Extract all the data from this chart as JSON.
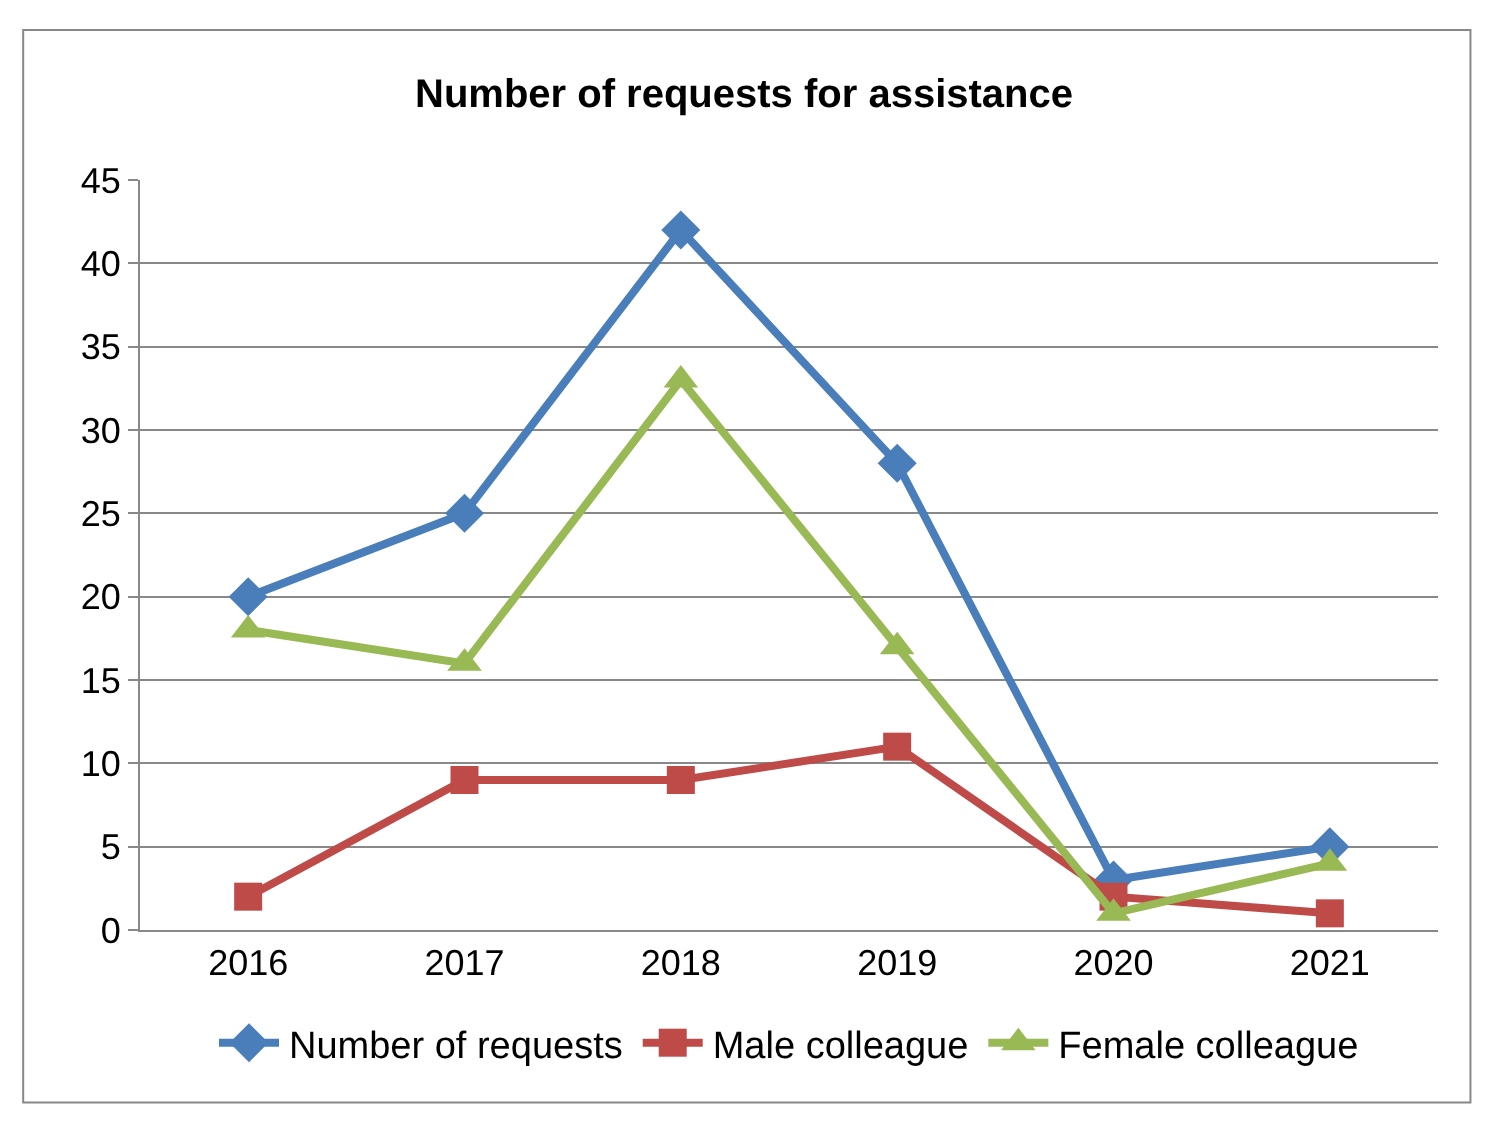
{
  "chart_data": {
    "type": "line",
    "title": "Number of requests for assistance",
    "categories": [
      "2016",
      "2017",
      "2018",
      "2019",
      "2020",
      "2021"
    ],
    "series": [
      {
        "name": "Number of requests",
        "color": "#4a7ebb",
        "marker": "diamond",
        "values": [
          20,
          25,
          42,
          28,
          3,
          5
        ]
      },
      {
        "name": "Male colleague",
        "color": "#be4b48",
        "marker": "square",
        "values": [
          2,
          9,
          9,
          11,
          2,
          1
        ]
      },
      {
        "name": "Female colleague",
        "color": "#98b954",
        "marker": "triangle",
        "values": [
          18,
          16,
          33,
          17,
          1,
          4
        ]
      }
    ],
    "ylim": [
      0,
      45
    ],
    "yticks": [
      0,
      5,
      10,
      15,
      20,
      25,
      30,
      35,
      40,
      45
    ],
    "grid": "y",
    "legend": "bottom",
    "line_style": "solid"
  }
}
